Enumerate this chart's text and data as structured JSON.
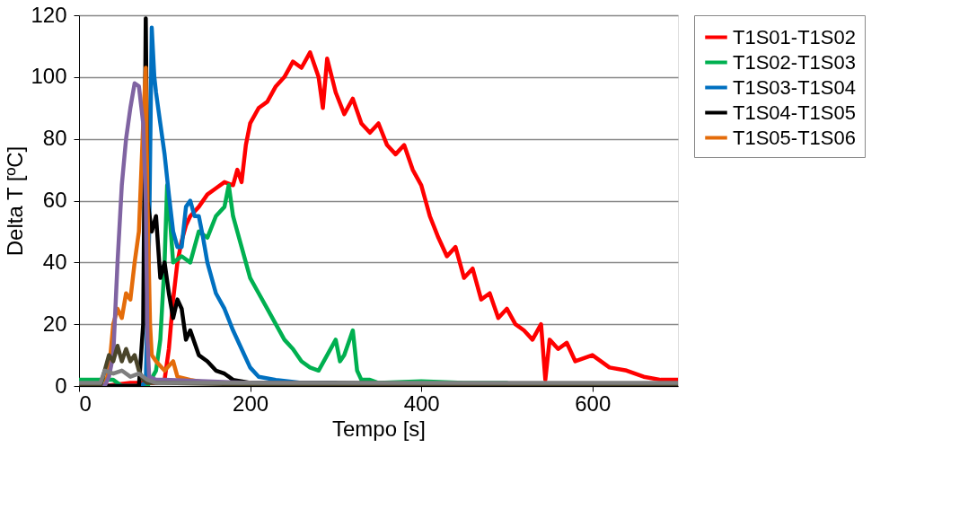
{
  "chart_data": {
    "type": "line",
    "xlabel": "Tempo [s]",
    "ylabel": "Delta T [ºC]",
    "xlim": [
      0,
      700
    ],
    "ylim": [
      0,
      120
    ],
    "xticks": [
      0,
      200,
      400,
      600
    ],
    "yticks": [
      0,
      20,
      40,
      60,
      80,
      100,
      120
    ],
    "grid": "y",
    "legend": "right",
    "line_style": "solid",
    "marker": "none",
    "series": [
      {
        "name": "T1S01-T1S02",
        "color": "#ff0000",
        "x": [
          0,
          30,
          60,
          90,
          100,
          105,
          110,
          115,
          120,
          125,
          130,
          140,
          150,
          160,
          170,
          180,
          185,
          190,
          195,
          200,
          210,
          220,
          230,
          240,
          250,
          260,
          270,
          280,
          285,
          290,
          300,
          310,
          320,
          330,
          340,
          350,
          360,
          370,
          380,
          390,
          400,
          405,
          410,
          420,
          430,
          440,
          450,
          460,
          470,
          480,
          490,
          500,
          510,
          520,
          530,
          540,
          545,
          550,
          560,
          570,
          580,
          600,
          620,
          640,
          660,
          680,
          700
        ],
        "values": [
          0,
          0,
          1,
          1,
          2,
          12,
          28,
          40,
          47,
          52,
          55,
          58,
          62,
          64,
          66,
          65,
          70,
          66,
          78,
          85,
          90,
          92,
          97,
          100,
          105,
          103,
          108,
          100,
          90,
          106,
          95,
          88,
          93,
          85,
          82,
          85,
          78,
          75,
          78,
          70,
          65,
          60,
          55,
          48,
          42,
          45,
          35,
          38,
          28,
          30,
          22,
          25,
          20,
          18,
          15,
          20,
          2,
          15,
          12,
          14,
          8,
          10,
          6,
          5,
          3,
          2,
          2
        ]
      },
      {
        "name": "T1S02-T1S03",
        "color": "#00b050",
        "x": [
          0,
          20,
          40,
          50,
          80,
          90,
          95,
          100,
          103,
          106,
          110,
          120,
          130,
          140,
          150,
          160,
          170,
          175,
          180,
          190,
          200,
          210,
          220,
          230,
          240,
          250,
          260,
          270,
          280,
          290,
          300,
          305,
          310,
          320,
          325,
          330,
          340,
          350,
          400,
          450,
          500
        ],
        "values": [
          2,
          2,
          2,
          0,
          0,
          5,
          15,
          40,
          65,
          55,
          40,
          42,
          40,
          50,
          48,
          55,
          58,
          65,
          55,
          45,
          35,
          30,
          25,
          20,
          15,
          12,
          8,
          6,
          5,
          10,
          15,
          8,
          10,
          18,
          5,
          2,
          2,
          1,
          1.5,
          1,
          1
        ]
      },
      {
        "name": "T1S03-T1S04",
        "color": "#0070c0",
        "x": [
          0,
          40,
          70,
          78,
          82,
          85,
          88,
          90,
          95,
          100,
          105,
          110,
          115,
          120,
          125,
          130,
          135,
          140,
          145,
          150,
          160,
          170,
          180,
          190,
          200,
          210,
          230,
          260,
          300
        ],
        "values": [
          0,
          0,
          0,
          1,
          50,
          116,
          100,
          95,
          85,
          75,
          62,
          50,
          45,
          45,
          58,
          60,
          55,
          55,
          48,
          40,
          30,
          25,
          18,
          12,
          6,
          3,
          2,
          1,
          1
        ]
      },
      {
        "name": "T1S04-T1S05",
        "color": "#000000",
        "x": [
          0,
          40,
          70,
          75,
          78,
          80,
          85,
          90,
          95,
          100,
          105,
          110,
          115,
          120,
          125,
          130,
          140,
          150,
          160,
          170,
          180,
          200,
          250,
          300,
          700
        ],
        "values": [
          0,
          0,
          0,
          20,
          119,
          60,
          50,
          55,
          35,
          40,
          30,
          22,
          28,
          25,
          15,
          18,
          10,
          8,
          5,
          4,
          2,
          1,
          1,
          1,
          0
        ]
      },
      {
        "name": "T1S05-T1S06",
        "color": "#e46c0a",
        "x": [
          0,
          30,
          35,
          40,
          45,
          50,
          55,
          60,
          65,
          70,
          75,
          78,
          80,
          83,
          85,
          90,
          100,
          110,
          115,
          130,
          150,
          200
        ],
        "values": [
          0,
          0,
          5,
          20,
          25,
          22,
          30,
          28,
          40,
          50,
          85,
          103,
          60,
          20,
          10,
          8,
          5,
          8,
          3,
          2,
          1,
          1
        ]
      },
      {
        "color": "#8064a2",
        "x": [
          0,
          30,
          35,
          40,
          45,
          50,
          55,
          60,
          65,
          70,
          75,
          78,
          80,
          82,
          90,
          100,
          200,
          700
        ],
        "values": [
          0,
          0,
          3,
          10,
          40,
          65,
          80,
          90,
          98,
          97,
          85,
          60,
          15,
          3,
          2,
          2,
          1,
          0
        ]
      },
      {
        "color": "#4a452a",
        "x": [
          0,
          25,
          30,
          35,
          40,
          45,
          50,
          55,
          60,
          65,
          70,
          75,
          80,
          100,
          200,
          400,
          700
        ],
        "values": [
          0,
          0,
          5,
          10,
          8,
          13,
          8,
          12,
          8,
          10,
          5,
          2,
          1,
          1,
          0.5,
          0.5,
          0
        ]
      },
      {
        "color": "#7f7f7f",
        "x": [
          0,
          25,
          30,
          40,
          50,
          60,
          70,
          80,
          90,
          100,
          150,
          200,
          300,
          400,
          500,
          600,
          700
        ],
        "values": [
          1,
          1,
          5,
          4,
          5,
          3,
          4,
          2,
          1,
          1,
          1,
          1,
          1,
          1,
          1,
          1,
          1
        ]
      }
    ]
  }
}
